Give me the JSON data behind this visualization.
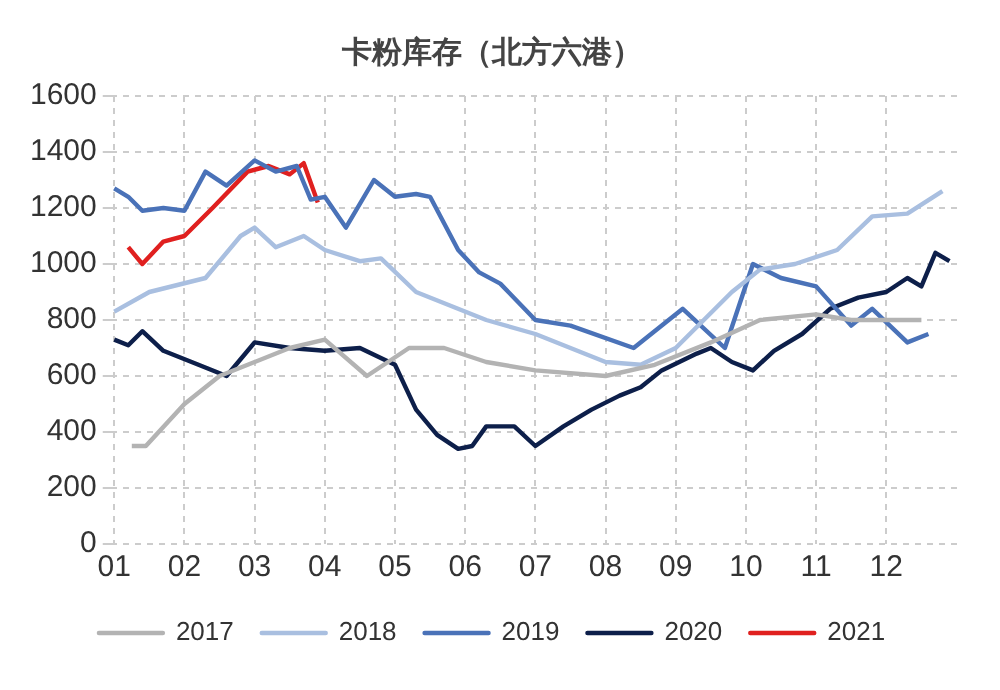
{
  "chart_data": {
    "type": "line",
    "title": "卡粉库存（北方六港）",
    "xlim": [
      0.95,
      13.05
    ],
    "xticks": [
      {
        "value": 1,
        "label": "01"
      },
      {
        "value": 2,
        "label": "02"
      },
      {
        "value": 3,
        "label": "03"
      },
      {
        "value": 4,
        "label": "04"
      },
      {
        "value": 5,
        "label": "05"
      },
      {
        "value": 6,
        "label": "06"
      },
      {
        "value": 7,
        "label": "07"
      },
      {
        "value": 8,
        "label": "08"
      },
      {
        "value": 9,
        "label": "09"
      },
      {
        "value": 10,
        "label": "10"
      },
      {
        "value": 11,
        "label": "11"
      },
      {
        "value": 12,
        "label": "12"
      }
    ],
    "ylim": [
      0,
      1600
    ],
    "yticks": [
      0,
      200,
      400,
      600,
      800,
      1000,
      1200,
      1400,
      1600
    ],
    "grid": true,
    "legend": "bottom",
    "marker": "none",
    "line_style": "solid",
    "series": [
      {
        "name": "2017",
        "color": "#b3b3b3",
        "x": [
          1.25,
          1.45,
          2.0,
          2.5,
          3.0,
          3.5,
          4.0,
          4.6,
          5.2,
          5.7,
          6.3,
          7.0,
          8.0,
          8.7,
          9.5,
          10.2,
          11.0,
          11.5,
          12.5
        ],
        "values": [
          350,
          350,
          500,
          600,
          650,
          700,
          730,
          600,
          700,
          700,
          650,
          620,
          600,
          640,
          720,
          800,
          820,
          800,
          800
        ]
      },
      {
        "name": "2018",
        "color": "#a9bfe0",
        "x": [
          1.0,
          1.5,
          2.3,
          2.8,
          3.0,
          3.3,
          3.7,
          4.0,
          4.5,
          4.8,
          5.3,
          5.8,
          6.3,
          7.0,
          8.0,
          8.5,
          9.0,
          9.8,
          10.2,
          10.7,
          11.3,
          11.8,
          12.3,
          12.8
        ],
        "values": [
          830,
          900,
          950,
          1100,
          1130,
          1060,
          1100,
          1050,
          1010,
          1020,
          900,
          850,
          800,
          750,
          650,
          640,
          700,
          900,
          980,
          1000,
          1050,
          1170,
          1180,
          1260
        ]
      },
      {
        "name": "2019",
        "color": "#4a72b8",
        "x": [
          1.0,
          1.2,
          1.4,
          1.7,
          2.0,
          2.3,
          2.6,
          3.0,
          3.3,
          3.6,
          3.8,
          4.0,
          4.3,
          4.7,
          5.0,
          5.3,
          5.5,
          5.9,
          6.2,
          6.5,
          7.0,
          7.5,
          8.4,
          9.1,
          9.7,
          10.1,
          10.5,
          11.0,
          11.5,
          11.8,
          12.3,
          12.6
        ],
        "values": [
          1270,
          1240,
          1190,
          1200,
          1190,
          1330,
          1280,
          1370,
          1330,
          1350,
          1230,
          1240,
          1130,
          1300,
          1240,
          1250,
          1240,
          1050,
          970,
          930,
          800,
          780,
          700,
          840,
          700,
          1000,
          950,
          920,
          780,
          840,
          720,
          750
        ]
      },
      {
        "name": "2020",
        "color": "#0d1f4a",
        "x": [
          1.0,
          1.2,
          1.4,
          1.7,
          2.2,
          2.6,
          3.0,
          3.5,
          4.0,
          4.5,
          5.0,
          5.3,
          5.6,
          5.9,
          6.1,
          6.3,
          6.7,
          7.0,
          7.4,
          7.8,
          8.2,
          8.5,
          8.8,
          9.3,
          9.5,
          9.8,
          10.1,
          10.4,
          10.8,
          11.2,
          11.6,
          12.0,
          12.3,
          12.5,
          12.7,
          12.9
        ],
        "values": [
          730,
          710,
          760,
          690,
          640,
          600,
          720,
          700,
          690,
          700,
          640,
          480,
          390,
          340,
          350,
          420,
          420,
          350,
          420,
          480,
          530,
          560,
          620,
          680,
          700,
          650,
          620,
          690,
          750,
          840,
          880,
          900,
          950,
          920,
          1040,
          1010
        ]
      },
      {
        "name": "2021",
        "color": "#e0201f",
        "x": [
          1.2,
          1.4,
          1.7,
          2.0,
          2.4,
          2.9,
          3.2,
          3.5,
          3.7,
          3.9
        ],
        "values": [
          1060,
          1000,
          1080,
          1100,
          1200,
          1330,
          1350,
          1320,
          1360,
          1220
        ]
      }
    ]
  }
}
